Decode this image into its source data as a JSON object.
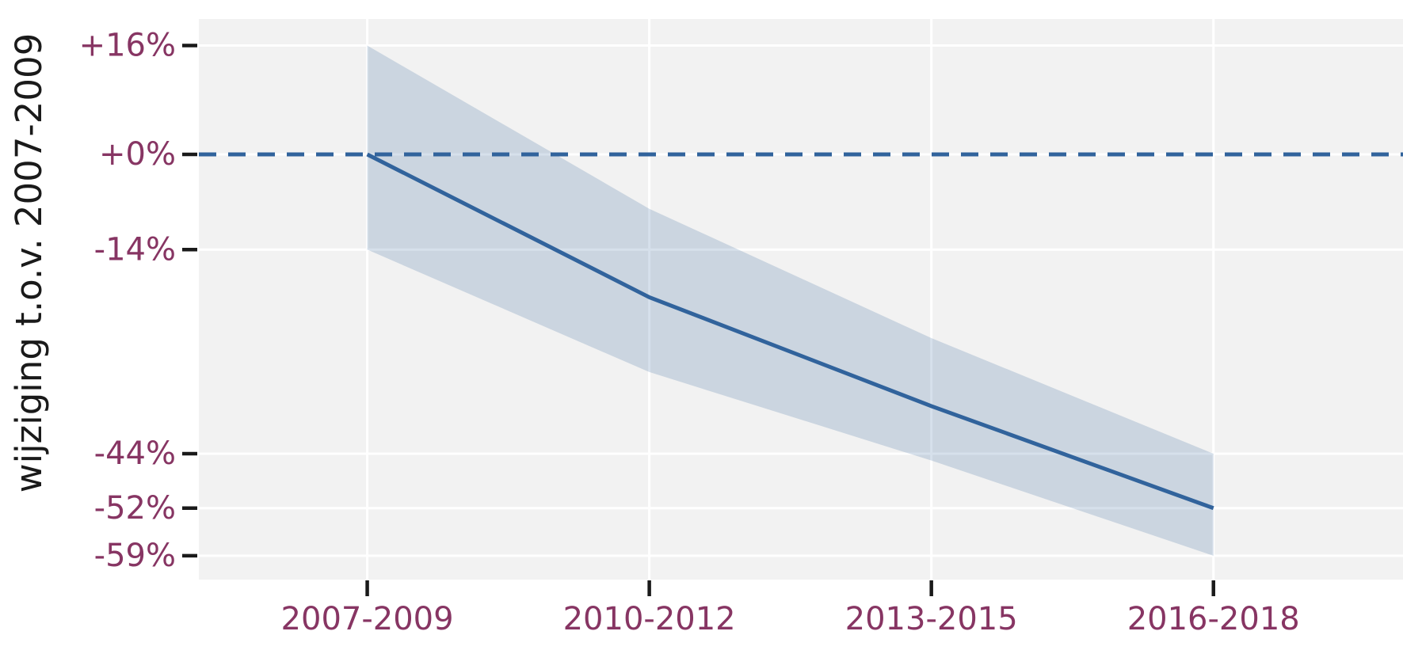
{
  "chart_data": {
    "type": "line",
    "title": "",
    "xlabel": "",
    "ylabel": "wijziging t.o.v. 2007-2009",
    "categories": [
      "2007-2009",
      "2010-2012",
      "2013-2015",
      "2016-2018"
    ],
    "series": [
      {
        "name": "trend",
        "values": [
          0,
          -21,
          -37,
          -52
        ]
      },
      {
        "name": "ci_upper",
        "values": [
          16,
          -8,
          -27,
          -44
        ]
      },
      {
        "name": "ci_lower",
        "values": [
          -14,
          -32,
          -45,
          -59
        ]
      }
    ],
    "baseline": {
      "value": 0,
      "style": "dashed"
    },
    "yticks": [
      {
        "label": "+16%",
        "value": 16
      },
      {
        "label": "+0%",
        "value": 0
      },
      {
        "label": "-14%",
        "value": -14
      },
      {
        "label": "-44%",
        "value": -44
      },
      {
        "label": "-52%",
        "value": -52
      },
      {
        "label": "-59%",
        "value": -59
      }
    ],
    "ylim": [
      -62.5,
      19.9
    ],
    "xlim": [
      -0.597,
      3.672
    ],
    "grid": true,
    "legend": false,
    "colors": {
      "line": "#31639c",
      "band": "rgba(49,99,156,0.20)",
      "tick_label": "#873563",
      "axis_title": "#1a1a1a",
      "tick_mark": "#1a1a1a",
      "plot_bg": "#f2f2f2",
      "grid": "#ffffff",
      "figure_bg": "#ffffff"
    }
  }
}
